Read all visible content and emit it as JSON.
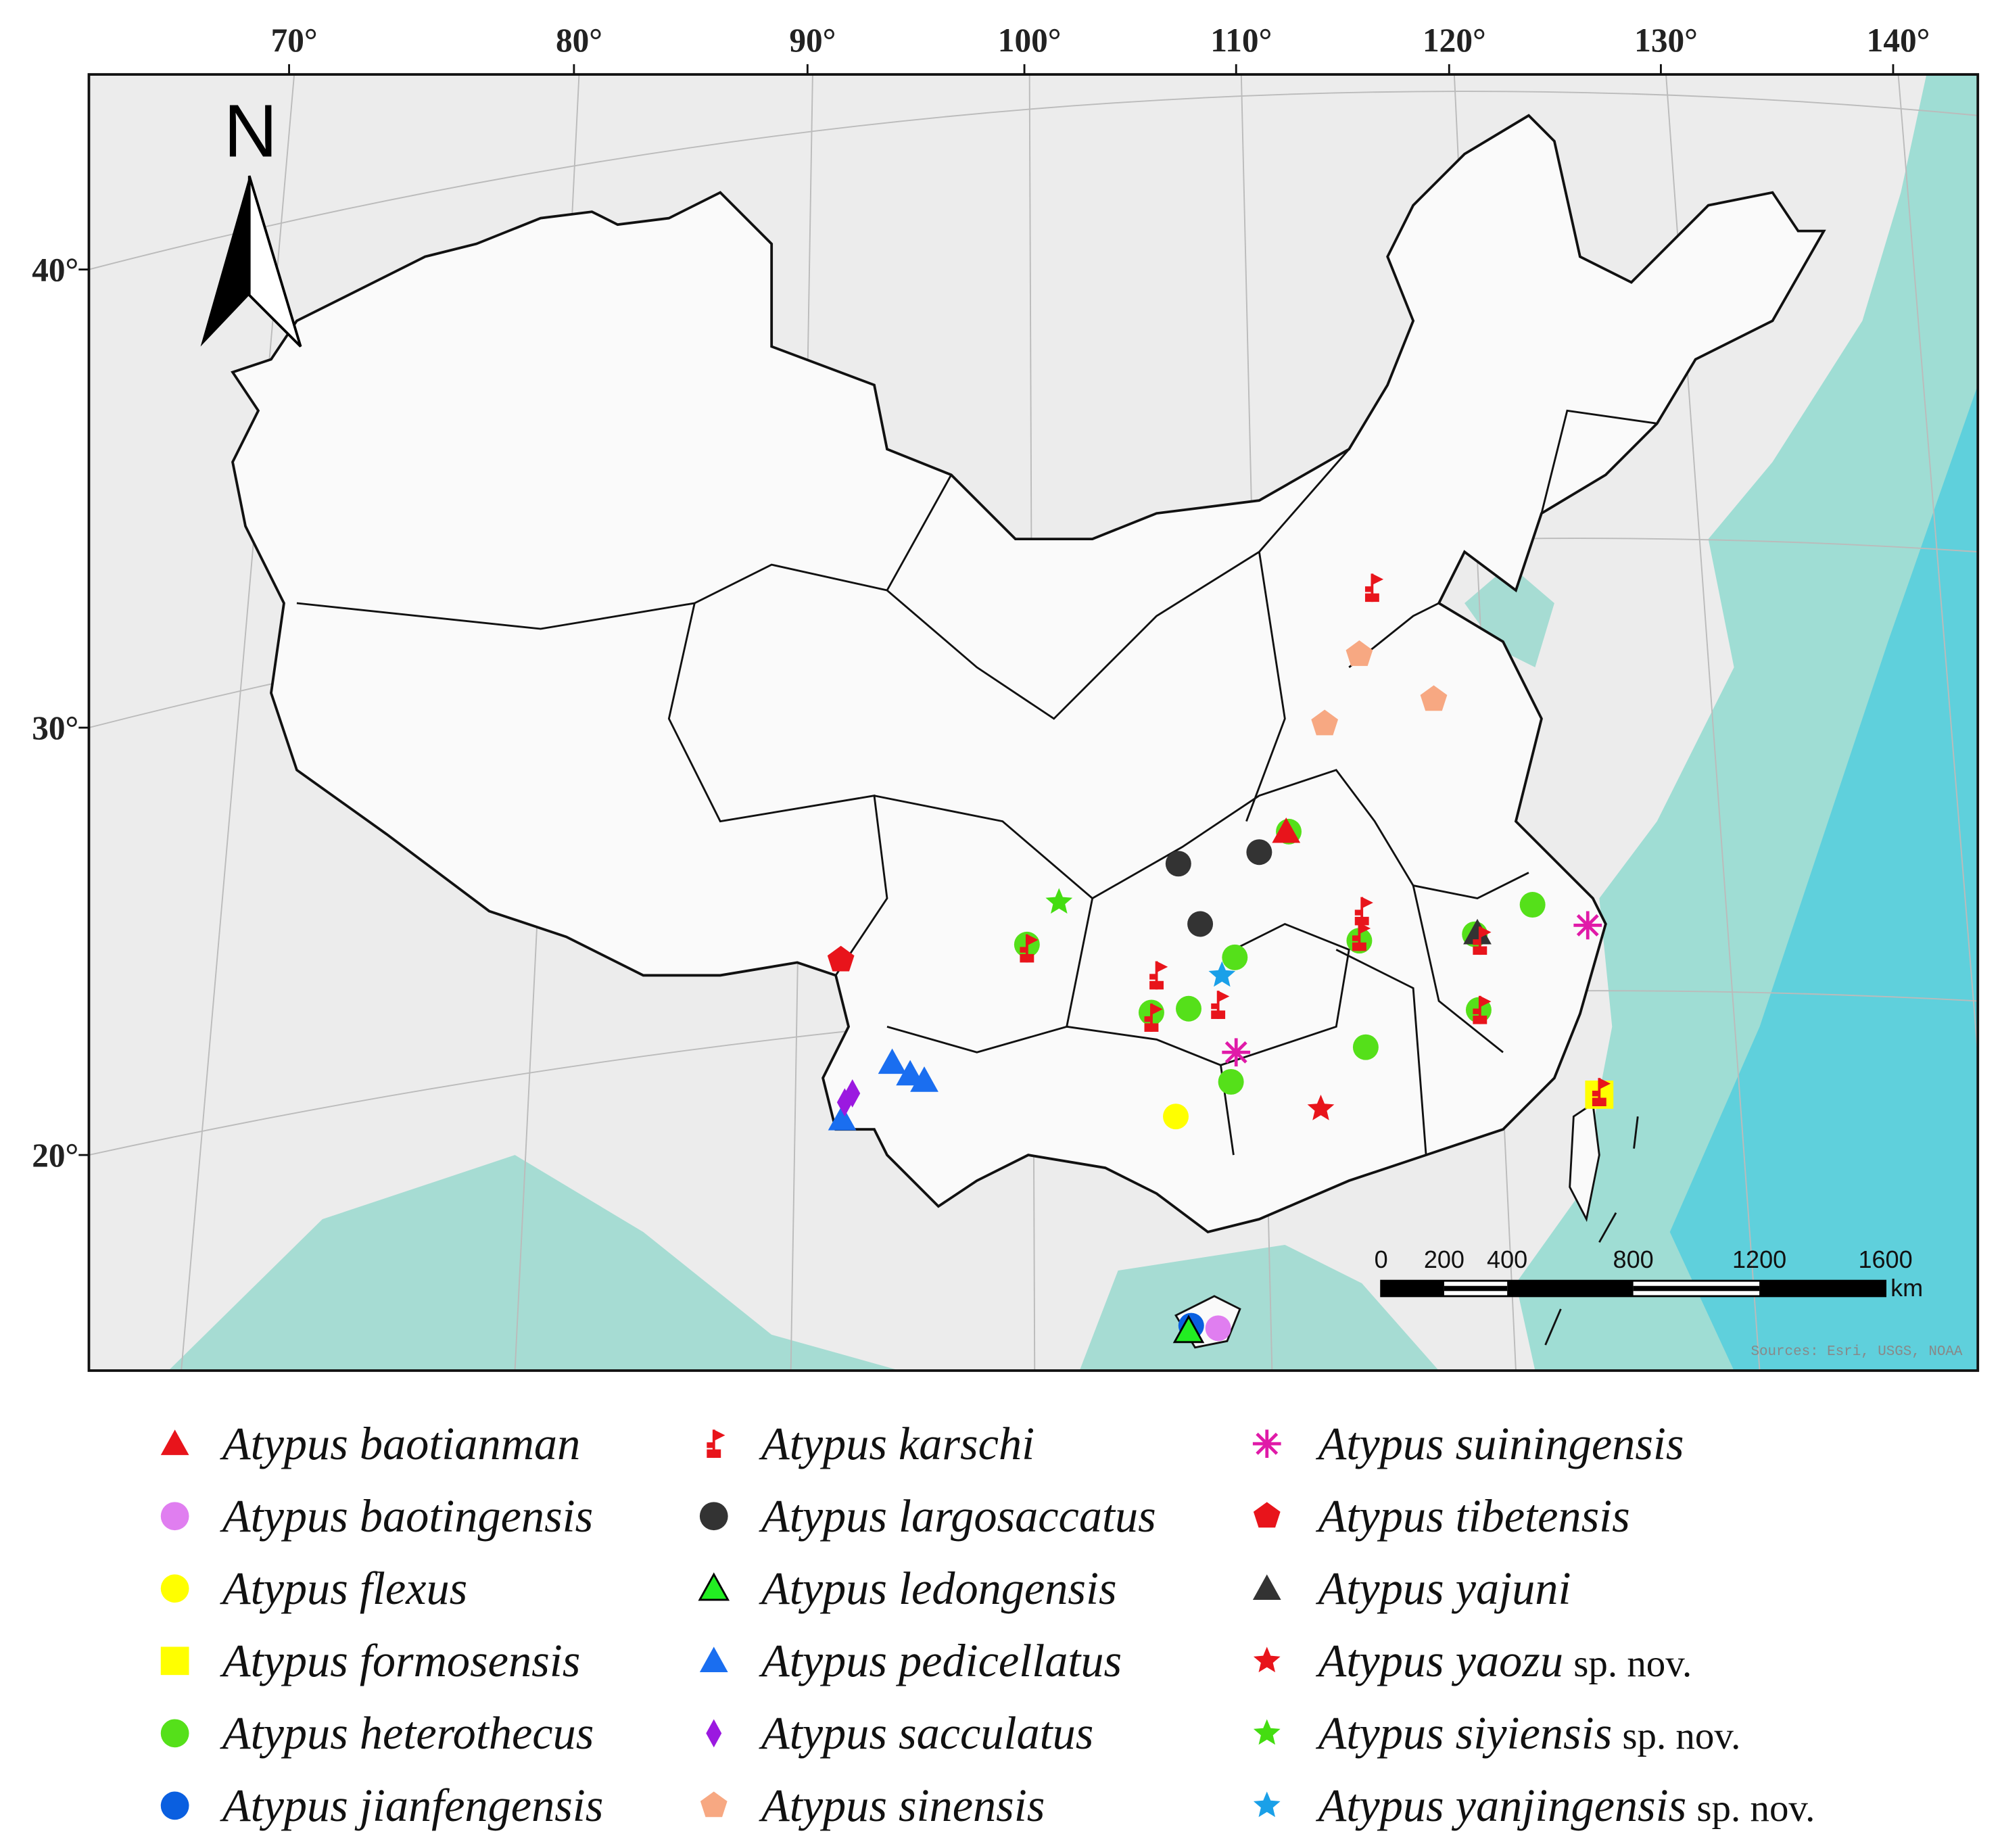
{
  "map": {
    "north_label": "N",
    "longitude_labels": [
      "70°",
      "80°",
      "90°",
      "100°",
      "110°",
      "120°",
      "130°",
      "140°"
    ],
    "latitude_labels": [
      "40°",
      "30°",
      "20°"
    ],
    "scale_bar": {
      "labels": [
        0,
        200,
        400,
        800,
        1200,
        1600
      ],
      "unit": "km"
    },
    "source": "Sources: Esri, USGS, NOAA"
  },
  "legend": [
    {
      "name": "Atypus baotianman",
      "shape": "triangle",
      "color": "#e8141b"
    },
    {
      "name": "Atypus baotingensis",
      "shape": "circle",
      "color": "#e07ef0"
    },
    {
      "name": "Atypus flexus",
      "shape": "circle",
      "color": "#ffff00"
    },
    {
      "name": "Atypus formosensis",
      "shape": "square",
      "color": "#ffff00"
    },
    {
      "name": "Atypus heterothecus",
      "shape": "circle",
      "color": "#55e01a"
    },
    {
      "name": "Atypus jianfengensis",
      "shape": "circle",
      "color": "#0a5fe0"
    },
    {
      "name": "Atypus karschi",
      "shape": "flag",
      "color": "#e8141b"
    },
    {
      "name": "Atypus largosaccatus",
      "shape": "circle",
      "color": "#333333"
    },
    {
      "name": "Atypus ledongensis",
      "shape": "triangle-outline",
      "color": "#22ee22"
    },
    {
      "name": "Atypus pedicellatus",
      "shape": "triangle",
      "color": "#1a6ef0"
    },
    {
      "name": "Atypus sacculatus",
      "shape": "diamond",
      "color": "#9b19e0"
    },
    {
      "name": "Atypus sinensis",
      "shape": "pentagon",
      "color": "#f7a882"
    },
    {
      "name": "Atypus suiningensis",
      "shape": "asterisk",
      "color": "#e01aa8"
    },
    {
      "name": "Atypus tibetensis",
      "shape": "pentagon",
      "color": "#e8141b"
    },
    {
      "name": "Atypus yajuni",
      "shape": "triangle",
      "color": "#333333"
    },
    {
      "name": "Atypus yaozu",
      "suffix": "sp. nov.",
      "shape": "star",
      "color": "#e8141b"
    },
    {
      "name": "Atypus siyiensis",
      "suffix": "sp. nov.",
      "shape": "star",
      "color": "#44dd11"
    },
    {
      "name": "Atypus yanjingensis",
      "suffix": "sp. nov.",
      "shape": "star",
      "color": "#1aa0e8"
    }
  ]
}
